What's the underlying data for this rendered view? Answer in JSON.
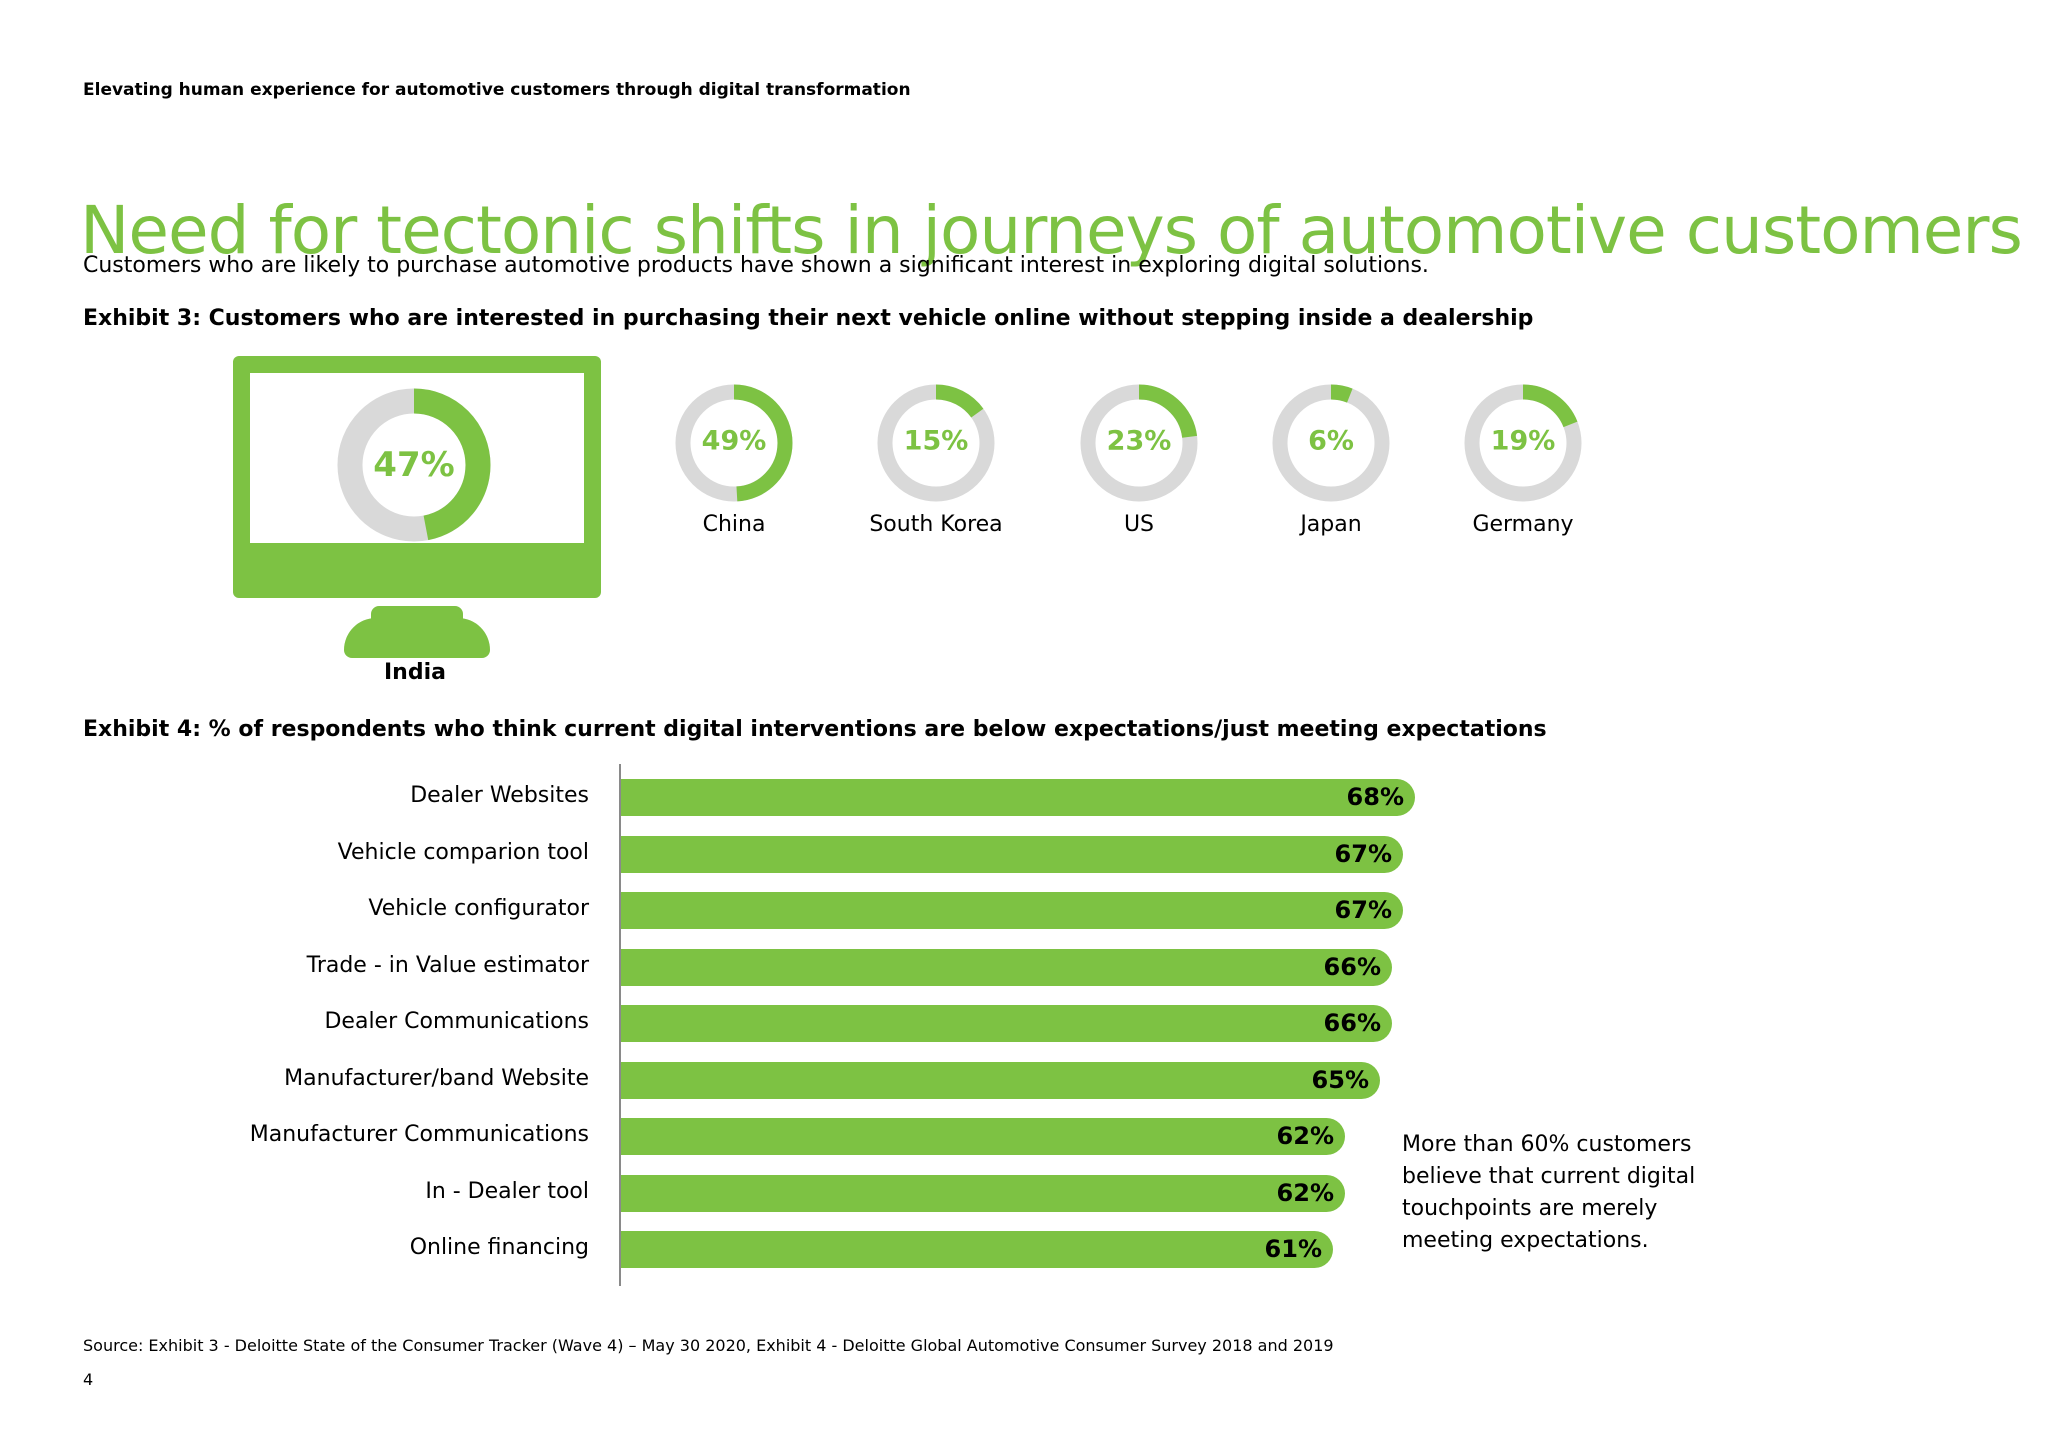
{
  "header": {
    "running_title": "Elevating human experience for automotive customers through digital transformation"
  },
  "page": {
    "title": "Need for tectonic shifts in journeys of automotive customers",
    "intro": "Customers who are likely to purchase automotive products have shown a significant interest in exploring digital solutions.",
    "callout": "More than 60% customers believe that current digital touchpoints are merely meeting expectations.",
    "source": "Source: Exhibit 3 - Deloitte State of the Consumer Tracker (Wave 4) – May 30 2020, Exhibit 4 - Deloitte Global Automotive Consumer Survey 2018 and 2019",
    "page_number": "4"
  },
  "colors": {
    "accent": "#7dc243",
    "donut_track": "#d9d9d9",
    "text": "#000000",
    "axis": "#8a8a8a"
  },
  "icons": {
    "monitor": "monitor-icon"
  },
  "chart_data": [
    {
      "type": "pie",
      "title": "Exhibit 3: Customers who are interested in purchasing their next vehicle online without stepping inside a dealership",
      "categories": [
        "India",
        "China",
        "South Korea",
        "US",
        "Japan",
        "Germany"
      ],
      "values": [
        47,
        49,
        15,
        23,
        6,
        19
      ],
      "labels": [
        "47%",
        "49%",
        "15%",
        "23%",
        "6%",
        "19%"
      ]
    },
    {
      "type": "bar",
      "title": "Exhibit 4: % of respondents who think current digital interventions are below expectations/just meeting expectations",
      "categories": [
        "Dealer Websites",
        "Vehicle comparion tool",
        "Vehicle configurator",
        "Trade - in Value estimator",
        "Dealer Communications",
        "Manufacturer/band Website",
        "Manufacturer Communications",
        "In - Dealer tool",
        "Online financing"
      ],
      "values": [
        68,
        67,
        67,
        66,
        66,
        65,
        62,
        62,
        61
      ],
      "labels": [
        "68%",
        "67%",
        "67%",
        "66%",
        "66%",
        "65%",
        "62%",
        "62%",
        "61%"
      ]
    }
  ]
}
